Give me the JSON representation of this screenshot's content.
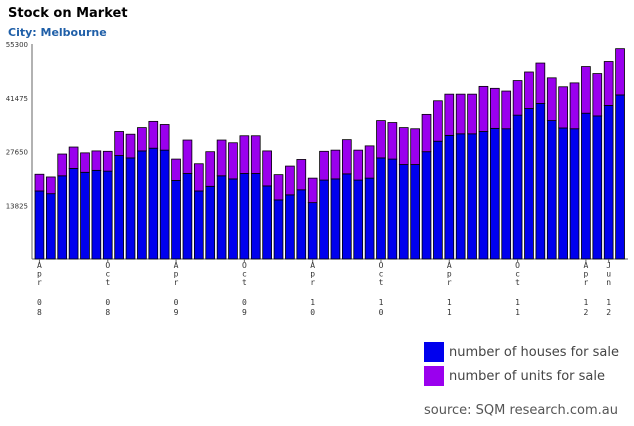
{
  "title": "Stock on Market",
  "subtitle": "City: Melbourne",
  "source": "source: SQM research.com.au",
  "colors": {
    "houses": "#0000ee",
    "units": "#9a00ee",
    "axis": "#666666"
  },
  "chart_data": {
    "type": "bar",
    "stacked": true,
    "title": "Stock on Market",
    "subtitle": "City: Melbourne",
    "ylim": [
      0,
      55300
    ],
    "yticks": [
      13825,
      27650,
      41475,
      55300
    ],
    "xtick_labels": [
      {
        "index": 0,
        "lines": [
          "Apr",
          "08"
        ]
      },
      {
        "index": 6,
        "lines": [
          "Oct",
          "08"
        ]
      },
      {
        "index": 12,
        "lines": [
          "Apr",
          "09"
        ]
      },
      {
        "index": 18,
        "lines": [
          "Oct",
          "09"
        ]
      },
      {
        "index": 24,
        "lines": [
          "Apr",
          "10"
        ]
      },
      {
        "index": 30,
        "lines": [
          "Oct",
          "10"
        ]
      },
      {
        "index": 36,
        "lines": [
          "Apr",
          "11"
        ]
      },
      {
        "index": 42,
        "lines": [
          "Oct",
          "11"
        ]
      },
      {
        "index": 48,
        "lines": [
          "Apr",
          "12"
        ]
      },
      {
        "index": 50,
        "lines": [
          "Jun",
          "12"
        ]
      }
    ],
    "series": [
      {
        "name": "number of houses for sale",
        "values": [
          17500,
          16800,
          21400,
          23300,
          22300,
          22800,
          22600,
          26600,
          26000,
          27800,
          28500,
          28000,
          20200,
          22000,
          17500,
          18700,
          21400,
          20600,
          22000,
          22000,
          18800,
          15200,
          16500,
          17800,
          14500,
          20300,
          20600,
          21900,
          20300,
          20800,
          26000,
          25700,
          24300,
          24300,
          27600,
          30300,
          31800,
          32200,
          32200,
          32800,
          33600,
          33500,
          37000,
          38700,
          40000,
          35600,
          33700,
          33500,
          37500,
          36800,
          39500,
          42200
        ]
      },
      {
        "name": "number of units for sale",
        "values": [
          4300,
          4300,
          5600,
          5500,
          5000,
          5000,
          5100,
          6200,
          6100,
          6000,
          6900,
          6600,
          5500,
          8600,
          7000,
          8900,
          9200,
          9300,
          9700,
          9700,
          9000,
          6500,
          7400,
          7800,
          6300,
          7400,
          7400,
          8800,
          7700,
          8300,
          9600,
          9400,
          9500,
          9200,
          9600,
          10400,
          10600,
          10200,
          10200,
          11600,
          10300,
          9700,
          8900,
          9400,
          10400,
          11000,
          10600,
          11800,
          12000,
          10900,
          11300,
          11900
        ]
      }
    ]
  },
  "legend": [
    {
      "label": "number of houses for sale",
      "color": "#0000ee"
    },
    {
      "label": "number of units for sale",
      "color": "#9a00ee"
    }
  ]
}
